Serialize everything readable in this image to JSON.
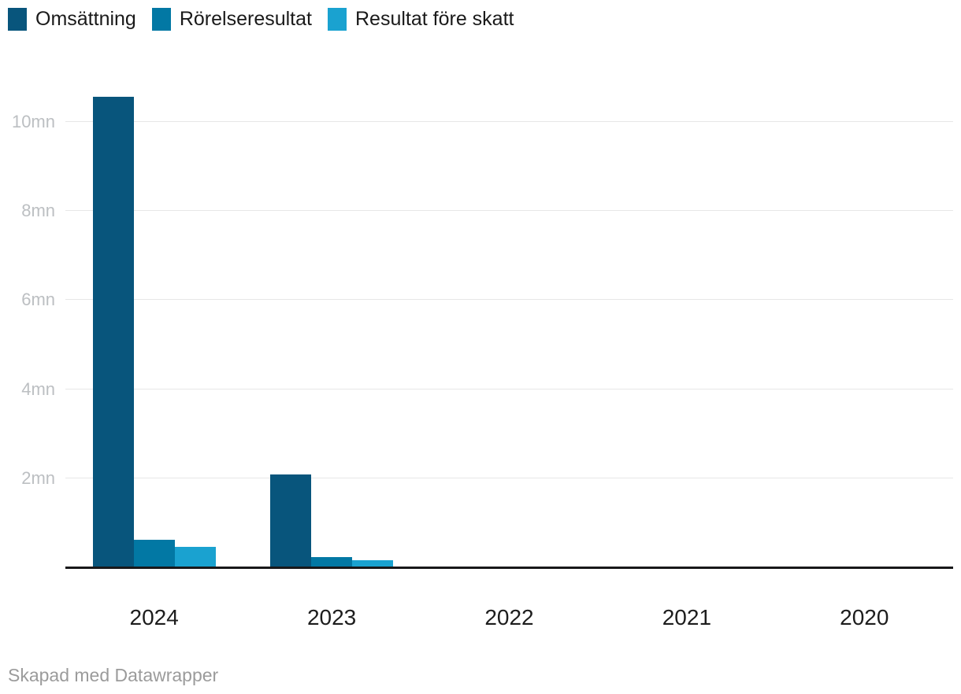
{
  "legend": {
    "items": [
      {
        "label": "Omsättning",
        "color": "#08557c"
      },
      {
        "label": "Rörelseresultat",
        "color": "#0278a4"
      },
      {
        "label": "Resultat före skatt",
        "color": "#1aa2d0"
      }
    ]
  },
  "footer": {
    "credit": "Skapad med Datawrapper"
  },
  "chart_data": {
    "type": "bar",
    "title": "",
    "unit": "mn",
    "categories": [
      "2024",
      "2023",
      "2022",
      "2021",
      "2020"
    ],
    "series": [
      {
        "name": "Omsättning",
        "color": "#08557c",
        "values": [
          10.55,
          2.07,
          0,
          0,
          0
        ]
      },
      {
        "name": "Rörelseresultat",
        "color": "#0278a4",
        "values": [
          0.6,
          0.21,
          0,
          0,
          0
        ]
      },
      {
        "name": "Resultat före skatt",
        "color": "#1aa2d0",
        "values": [
          0.45,
          0.15,
          0,
          0,
          0
        ]
      }
    ],
    "yticks": [
      {
        "value": 2,
        "label": "2mn"
      },
      {
        "value": 4,
        "label": "4mn"
      },
      {
        "value": 6,
        "label": "6mn"
      },
      {
        "value": 8,
        "label": "8mn"
      },
      {
        "value": 10,
        "label": "10mn"
      }
    ],
    "ylim": [
      0,
      10.55
    ],
    "grid": "horizontal",
    "legend_position": "top-left",
    "colors": {
      "gridline": "#e7e7e7",
      "axis_line": "#18181a",
      "ytick_label": "#bcbfc2",
      "xtick_label": "#1d1d1d",
      "background": "#ffffff"
    }
  }
}
